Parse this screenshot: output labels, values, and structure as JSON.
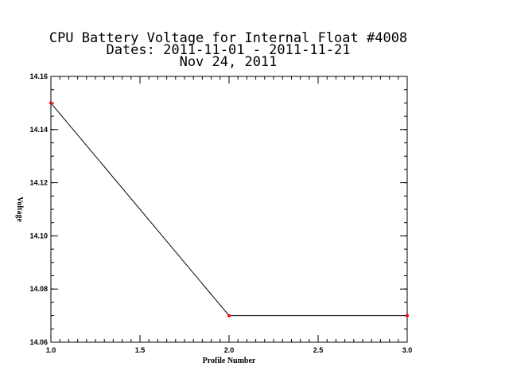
{
  "chart_data": {
    "type": "line",
    "title_lines": [
      "CPU Battery Voltage for Internal Float #4008",
      "Dates:  2011-11-01 -  2011-11-21",
      "Nov 24, 2011"
    ],
    "xlabel": "Profile Number",
    "ylabel": "Voltage",
    "xlim": [
      1.0,
      3.0
    ],
    "ylim": [
      14.06,
      14.16
    ],
    "x_ticks": [
      1.0,
      1.5,
      2.0,
      2.5,
      3.0
    ],
    "x_tick_labels": [
      "1.0",
      "1.5",
      "2.0",
      "2.5",
      "3.0"
    ],
    "y_ticks": [
      14.06,
      14.08,
      14.1,
      14.12,
      14.14,
      14.16
    ],
    "y_tick_labels": [
      "14.06",
      "14.08",
      "14.10",
      "14.12",
      "14.14",
      "14.16"
    ],
    "x": [
      1,
      2,
      3
    ],
    "y": [
      14.15,
      14.07,
      14.07
    ],
    "line_color": "#000000",
    "marker_color": "#ff0000",
    "grid": false
  }
}
